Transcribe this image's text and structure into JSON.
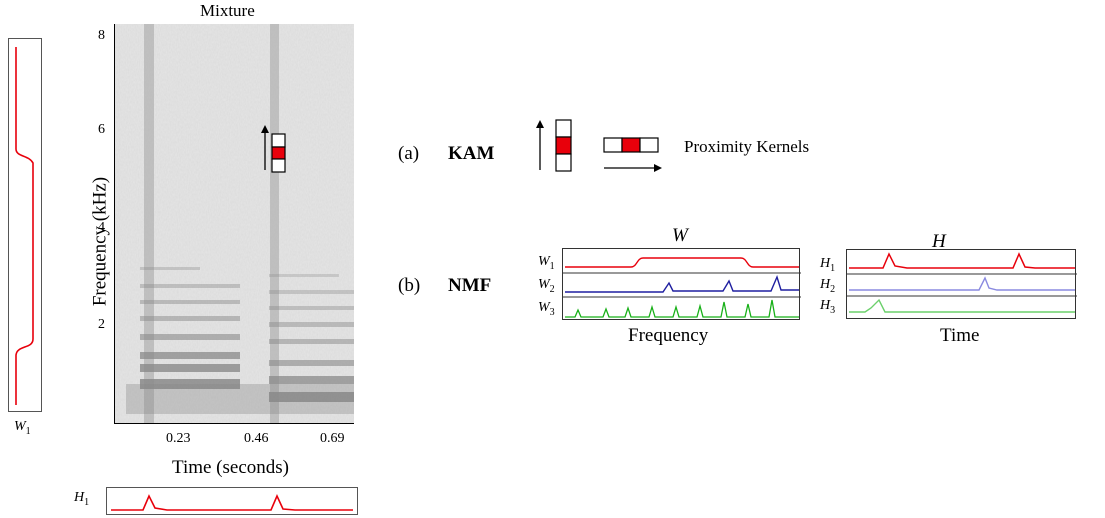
{
  "spectrogram": {
    "title": "Mixture",
    "ylabel": "Frequency (kHz)",
    "xlabel": "Time (seconds)",
    "yticks": [
      "2",
      "4",
      "6",
      "8"
    ],
    "xticks": [
      "0.23",
      "0.46",
      "0.69"
    ]
  },
  "side_w1_label": "W1",
  "bottom_h1_label": "H1",
  "kam": {
    "tag": "(a)",
    "name": "KAM",
    "caption": "Proximity Kernels"
  },
  "nmf": {
    "tag": "(b)",
    "name": "NMF",
    "W": {
      "title": "W",
      "xlabel": "Frequency",
      "rows": [
        "W1",
        "W2",
        "W3"
      ]
    },
    "H": {
      "title": "H",
      "xlabel": "Time",
      "rows": [
        "H1",
        "H2",
        "H3"
      ]
    }
  },
  "colors": {
    "red": "#e8000b",
    "blue": "#1f1fa0",
    "green": "#18b018",
    "light_blue": "#8a8ae0",
    "light_green": "#6cd06c"
  }
}
